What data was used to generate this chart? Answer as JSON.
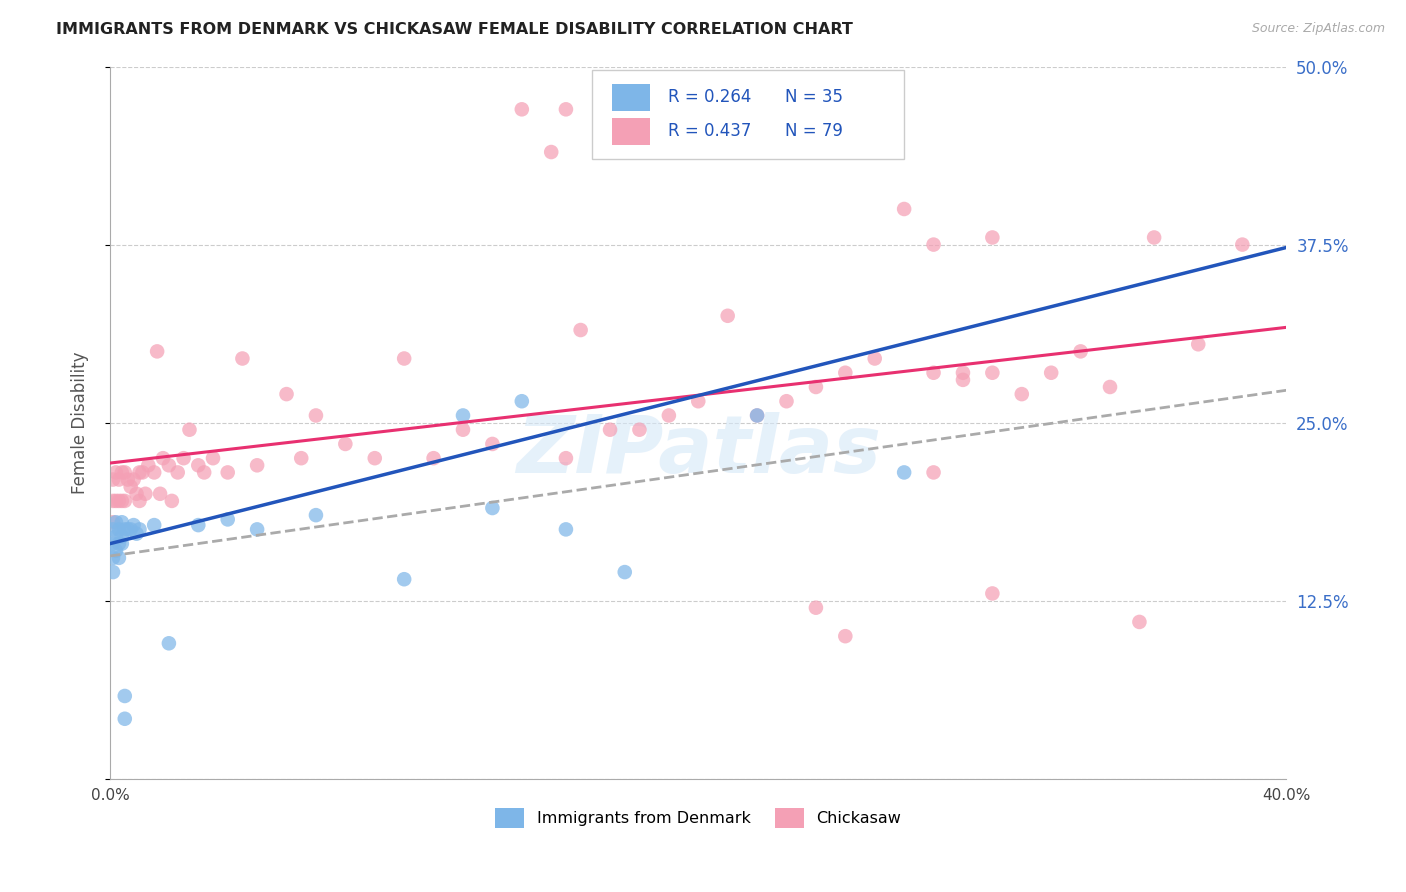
{
  "title": "IMMIGRANTS FROM DENMARK VS CHICKASAW FEMALE DISABILITY CORRELATION CHART",
  "source": "Source: ZipAtlas.com",
  "ylabel": "Female Disability",
  "xlim": [
    0.0,
    0.4
  ],
  "ylim": [
    0.0,
    0.5
  ],
  "yticks": [
    0.0,
    0.125,
    0.25,
    0.375,
    0.5
  ],
  "ytick_labels": [
    "",
    "12.5%",
    "25.0%",
    "37.5%",
    "50.0%"
  ],
  "blue_color": "#7eb6e8",
  "blue_line_color": "#2255bb",
  "pink_color": "#f4a0b5",
  "pink_line_color": "#e83070",
  "dashed_line_color": "#aaaaaa",
  "blue_label": "Immigrants from Denmark",
  "pink_label": "Chickasaw",
  "legend_text_color": "#2255bb",
  "watermark": "ZIPatlas",
  "blue_x": [
    0.001,
    0.001,
    0.001,
    0.001,
    0.002,
    0.002,
    0.002,
    0.003,
    0.003,
    0.003,
    0.004,
    0.004,
    0.004,
    0.005,
    0.005,
    0.005,
    0.006,
    0.007,
    0.008,
    0.009,
    0.01,
    0.015,
    0.02,
    0.03,
    0.04,
    0.05,
    0.07,
    0.1,
    0.12,
    0.13,
    0.14,
    0.155,
    0.175,
    0.22,
    0.27
  ],
  "blue_y": [
    0.175,
    0.165,
    0.155,
    0.145,
    0.18,
    0.17,
    0.16,
    0.175,
    0.165,
    0.155,
    0.18,
    0.17,
    0.165,
    0.175,
    0.058,
    0.042,
    0.175,
    0.175,
    0.178,
    0.172,
    0.175,
    0.178,
    0.095,
    0.178,
    0.182,
    0.175,
    0.185,
    0.14,
    0.255,
    0.19,
    0.265,
    0.175,
    0.145,
    0.255,
    0.215
  ],
  "pink_x": [
    0.001,
    0.001,
    0.001,
    0.002,
    0.002,
    0.003,
    0.003,
    0.004,
    0.004,
    0.005,
    0.005,
    0.006,
    0.007,
    0.008,
    0.009,
    0.01,
    0.01,
    0.011,
    0.012,
    0.013,
    0.015,
    0.016,
    0.017,
    0.018,
    0.02,
    0.021,
    0.023,
    0.025,
    0.027,
    0.03,
    0.032,
    0.035,
    0.04,
    0.045,
    0.05,
    0.06,
    0.065,
    0.07,
    0.08,
    0.09,
    0.1,
    0.11,
    0.12,
    0.13,
    0.14,
    0.15,
    0.155,
    0.16,
    0.17,
    0.18,
    0.19,
    0.2,
    0.21,
    0.22,
    0.23,
    0.24,
    0.25,
    0.26,
    0.27,
    0.28,
    0.29,
    0.3,
    0.31,
    0.32,
    0.33,
    0.34,
    0.355,
    0.37,
    0.385,
    0.24,
    0.155,
    0.175,
    0.3,
    0.35,
    0.25,
    0.28,
    0.29,
    0.28,
    0.3
  ],
  "pink_y": [
    0.21,
    0.195,
    0.18,
    0.215,
    0.195,
    0.21,
    0.195,
    0.215,
    0.195,
    0.215,
    0.195,
    0.21,
    0.205,
    0.21,
    0.2,
    0.215,
    0.195,
    0.215,
    0.2,
    0.22,
    0.215,
    0.3,
    0.2,
    0.225,
    0.22,
    0.195,
    0.215,
    0.225,
    0.245,
    0.22,
    0.215,
    0.225,
    0.215,
    0.295,
    0.22,
    0.27,
    0.225,
    0.255,
    0.235,
    0.225,
    0.295,
    0.225,
    0.245,
    0.235,
    0.47,
    0.44,
    0.225,
    0.315,
    0.245,
    0.245,
    0.255,
    0.265,
    0.325,
    0.255,
    0.265,
    0.275,
    0.285,
    0.295,
    0.4,
    0.285,
    0.28,
    0.38,
    0.27,
    0.285,
    0.3,
    0.275,
    0.38,
    0.305,
    0.375,
    0.12,
    0.47,
    0.44,
    0.13,
    0.11,
    0.1,
    0.215,
    0.285,
    0.375,
    0.285
  ]
}
